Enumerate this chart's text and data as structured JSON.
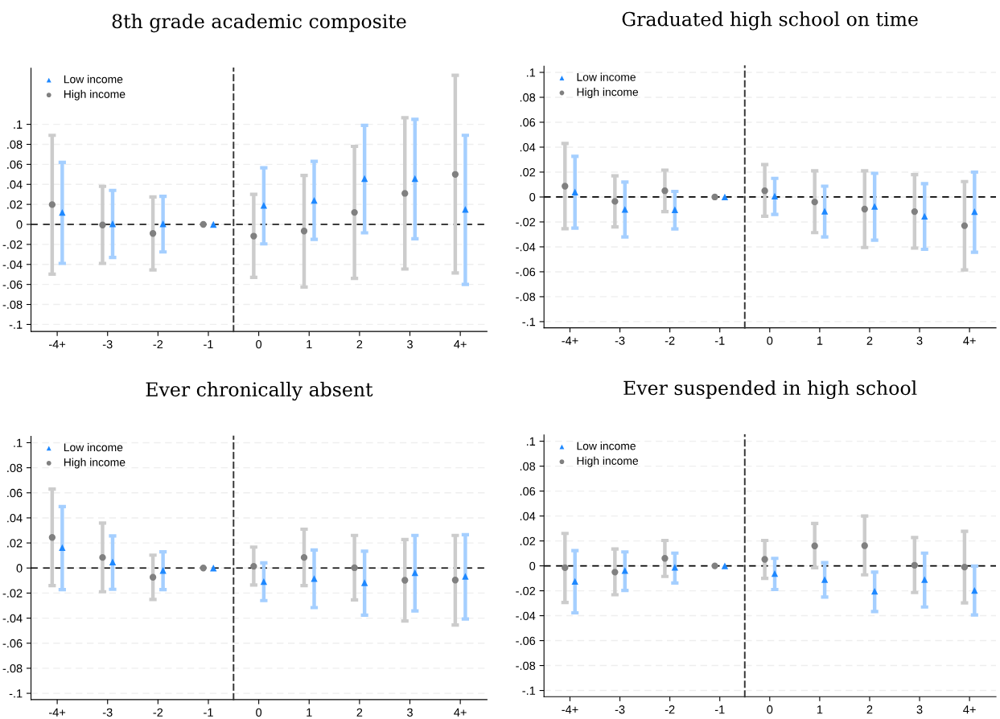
{
  "chart_data": [
    {
      "type": "scatter",
      "title": "8th grade academic composite",
      "categories": [
        "-4+",
        "-3",
        "-2",
        "-1",
        "0",
        "1",
        "2",
        "3",
        "4+"
      ],
      "ylim": [
        -0.107,
        0.156
      ],
      "yticks": [
        {
          "value": -0.1,
          "label": "-.1"
        },
        {
          "value": -0.08,
          "label": "-.08"
        },
        {
          "value": -0.06,
          "label": "-.06"
        },
        {
          "value": -0.04,
          "label": "-.04"
        },
        {
          "value": -0.02,
          "label": "-.02"
        },
        0,
        {
          "value": 0.02,
          "label": ".02"
        },
        {
          "value": 0.04,
          "label": ".04"
        },
        {
          "value": 0.06,
          "label": ".06"
        },
        {
          "value": 0.08,
          "label": ".08"
        },
        {
          "value": 0.1,
          "label": ".1"
        }
      ],
      "grid": "y",
      "legend": "top left",
      "ref_lines": [
        {
          "axis": "y",
          "value": 0,
          "color": "#000000",
          "line_style": "dashed"
        }
      ],
      "series": [
        {
          "name": "Low income",
          "color": "#1e88ff",
          "marker": "triangle",
          "values": [
            0.012,
            0.0006,
            0.0006,
            0,
            0.019,
            0.024,
            0.0458,
            0.0458,
            0.015
          ],
          "errors": [
            [
              -0.039,
              0.062
            ],
            [
              -0.033,
              0.034
            ],
            [
              -0.0275,
              0.028
            ],
            null,
            [
              -0.0195,
              0.0566
            ],
            [
              -0.015,
              0.063
            ],
            [
              -0.0084,
              0.099
            ],
            [
              -0.0144,
              0.105
            ],
            [
              -0.06,
              0.089
            ]
          ]
        },
        {
          "name": "High income",
          "color": "#808080",
          "marker": "circle",
          "values": [
            0.0198,
            -0.0006,
            -0.009,
            0,
            -0.0117,
            -0.0066,
            0.012,
            0.031,
            0.05
          ],
          "errors": [
            [
              -0.0497,
              0.089
            ],
            [
              -0.039,
              0.038
            ],
            [
              -0.0455,
              0.0275
            ],
            null,
            [
              -0.053,
              0.03
            ],
            [
              -0.0626,
              0.049
            ],
            [
              -0.054,
              0.078
            ],
            [
              -0.0446,
              0.1066
            ],
            [
              -0.0485,
              0.149
            ]
          ]
        }
      ]
    },
    {
      "type": "scatter",
      "title": "Graduated high school on time",
      "categories": [
        "-4+",
        "-3",
        "-2",
        "-1",
        "0",
        "1",
        "2",
        "3",
        "4+"
      ],
      "ylim": [
        -0.105,
        0.105
      ],
      "yticks": [
        {
          "value": -0.1,
          "label": "-.1"
        },
        {
          "value": -0.08,
          "label": "-.08"
        },
        {
          "value": -0.06,
          "label": "-.06"
        },
        {
          "value": -0.04,
          "label": "-.04"
        },
        {
          "value": -0.02,
          "label": "-.02"
        },
        0,
        {
          "value": 0.02,
          "label": ".02"
        },
        {
          "value": 0.04,
          "label": ".04"
        },
        {
          "value": 0.06,
          "label": ".06"
        },
        {
          "value": 0.08,
          "label": ".08"
        },
        {
          "value": 0.1,
          "label": ".1"
        }
      ],
      "grid": "y",
      "legend": "top left",
      "ref_lines": [
        {
          "axis": "y",
          "value": 0,
          "color": "#000000",
          "line_style": "dashed"
        }
      ],
      "series": [
        {
          "name": "Low income",
          "color": "#1e88ff",
          "marker": "triangle",
          "values": [
            0.004,
            -0.01,
            -0.0102,
            0,
            0.0007,
            -0.0114,
            -0.0075,
            -0.0154,
            -0.0117
          ],
          "errors": [
            [
              -0.025,
              0.0326
            ],
            [
              -0.032,
              0.012
            ],
            [
              -0.0256,
              0.0045
            ],
            null,
            [
              -0.014,
              0.015
            ],
            [
              -0.032,
              0.0087
            ],
            [
              -0.0346,
              0.019
            ],
            [
              -0.042,
              0.0107
            ],
            [
              -0.0443,
              0.02
            ]
          ]
        },
        {
          "name": "High income",
          "color": "#808080",
          "marker": "circle",
          "values": [
            0.0087,
            -0.0035,
            0.005,
            0,
            0.005,
            -0.004,
            -0.0097,
            -0.0117,
            -0.023
          ],
          "errors": [
            [
              -0.0254,
              0.043
            ],
            [
              -0.024,
              0.017
            ],
            [
              -0.0117,
              0.0216
            ],
            null,
            [
              -0.0154,
              0.026
            ],
            [
              -0.0286,
              0.021
            ],
            [
              -0.0405,
              0.021
            ],
            [
              -0.041,
              0.018
            ],
            [
              -0.0585,
              0.0124
            ]
          ]
        }
      ]
    },
    {
      "type": "scatter",
      "title": "Ever chronically absent",
      "categories": [
        "-4+",
        "-3",
        "-2",
        "-1",
        "0",
        "1",
        "2",
        "3",
        "4+"
      ],
      "ylim": [
        -0.105,
        0.105
      ],
      "yticks": [
        {
          "value": -0.1,
          "label": "-.1"
        },
        {
          "value": -0.08,
          "label": "-.08"
        },
        {
          "value": -0.06,
          "label": "-.06"
        },
        {
          "value": -0.04,
          "label": "-.04"
        },
        {
          "value": -0.02,
          "label": "-.02"
        },
        0,
        {
          "value": 0.02,
          "label": ".02"
        },
        {
          "value": 0.04,
          "label": ".04"
        },
        {
          "value": 0.06,
          "label": ".06"
        },
        {
          "value": 0.08,
          "label": ".08"
        },
        {
          "value": 0.1,
          "label": ".1"
        }
      ],
      "grid": "y",
      "legend": "top left",
      "ref_lines": [
        {
          "axis": "y",
          "value": 0,
          "color": "#000000",
          "line_style": "dashed"
        }
      ],
      "series": [
        {
          "name": "Low income",
          "color": "#1e88ff",
          "marker": "triangle",
          "values": [
            0.0163,
            0.0048,
            -0.0019,
            0,
            -0.0108,
            -0.0084,
            -0.0117,
            -0.0038,
            -0.0067
          ],
          "errors": [
            [
              -0.0172,
              0.049
            ],
            [
              -0.017,
              0.0256
            ],
            [
              -0.0172,
              0.0129
            ],
            null,
            [
              -0.026,
              0.0041
            ],
            [
              -0.0316,
              0.0144
            ],
            [
              -0.0376,
              0.0134
            ],
            [
              -0.0342,
              0.026
            ],
            [
              -0.0407,
              0.0266
            ]
          ]
        },
        {
          "name": "High income",
          "color": "#808080",
          "marker": "circle",
          "values": [
            0.0244,
            0.0084,
            -0.0074,
            0,
            0.0014,
            0.0084,
            0.0002,
            -0.0098,
            -0.0096
          ],
          "errors": [
            [
              -0.014,
              0.063
            ],
            [
              -0.0189,
              0.0359
            ],
            [
              -0.0251,
              0.0103
            ],
            null,
            [
              -0.0136,
              0.0167
            ],
            [
              -0.014,
              0.031
            ],
            [
              -0.0254,
              0.026
            ],
            [
              -0.0423,
              0.0227
            ],
            [
              -0.0455,
              0.026
            ]
          ]
        }
      ]
    },
    {
      "type": "scatter",
      "title": "Ever suspended in high school",
      "categories": [
        "-4+",
        "-3",
        "-2",
        "-1",
        "0",
        "1",
        "2",
        "3",
        "4+"
      ],
      "ylim": [
        -0.105,
        0.105
      ],
      "yticks": [
        {
          "value": -0.1,
          "label": "-.1"
        },
        {
          "value": -0.08,
          "label": "-.08"
        },
        {
          "value": -0.06,
          "label": "-.06"
        },
        {
          "value": -0.04,
          "label": "-.04"
        },
        {
          "value": -0.02,
          "label": "-.02"
        },
        0,
        {
          "value": 0.02,
          "label": ".02"
        },
        {
          "value": 0.04,
          "label": ".04"
        },
        {
          "value": 0.06,
          "label": ".06"
        },
        {
          "value": 0.08,
          "label": ".08"
        },
        {
          "value": 0.1,
          "label": ".1"
        }
      ],
      "grid": "y",
      "legend": "top left",
      "ref_lines": [
        {
          "axis": "y",
          "value": 0,
          "color": "#000000",
          "line_style": "dashed"
        }
      ],
      "series": [
        {
          "name": "Low income",
          "color": "#1e88ff",
          "marker": "triangle",
          "values": [
            -0.0125,
            -0.0037,
            -0.0012,
            0,
            -0.0062,
            -0.011,
            -0.0204,
            -0.011,
            -0.0197
          ],
          "errors": [
            [
              -0.0377,
              0.0122
            ],
            [
              -0.0197,
              0.0112
            ],
            [
              -0.0137,
              0.0102
            ],
            null,
            [
              -0.019,
              0.006
            ],
            [
              -0.025,
              0.0025
            ],
            [
              -0.0367,
              -0.005
            ],
            [
              -0.033,
              0.0102
            ],
            [
              -0.0394,
              -0.0002
            ]
          ]
        },
        {
          "name": "High income",
          "color": "#808080",
          "marker": "circle",
          "values": [
            -0.0015,
            -0.005,
            0.006,
            0,
            0.0052,
            0.016,
            0.0162,
            0.0005,
            -0.001
          ],
          "errors": [
            [
              -0.0294,
              0.026
            ],
            [
              -0.0232,
              0.0135
            ],
            [
              -0.0085,
              0.0204
            ],
            null,
            [
              -0.01,
              0.0204
            ],
            [
              -0.0015,
              0.034
            ],
            [
              -0.0072,
              0.04
            ],
            [
              -0.0214,
              0.0227
            ],
            [
              -0.0297,
              0.0277
            ]
          ]
        }
      ]
    }
  ]
}
